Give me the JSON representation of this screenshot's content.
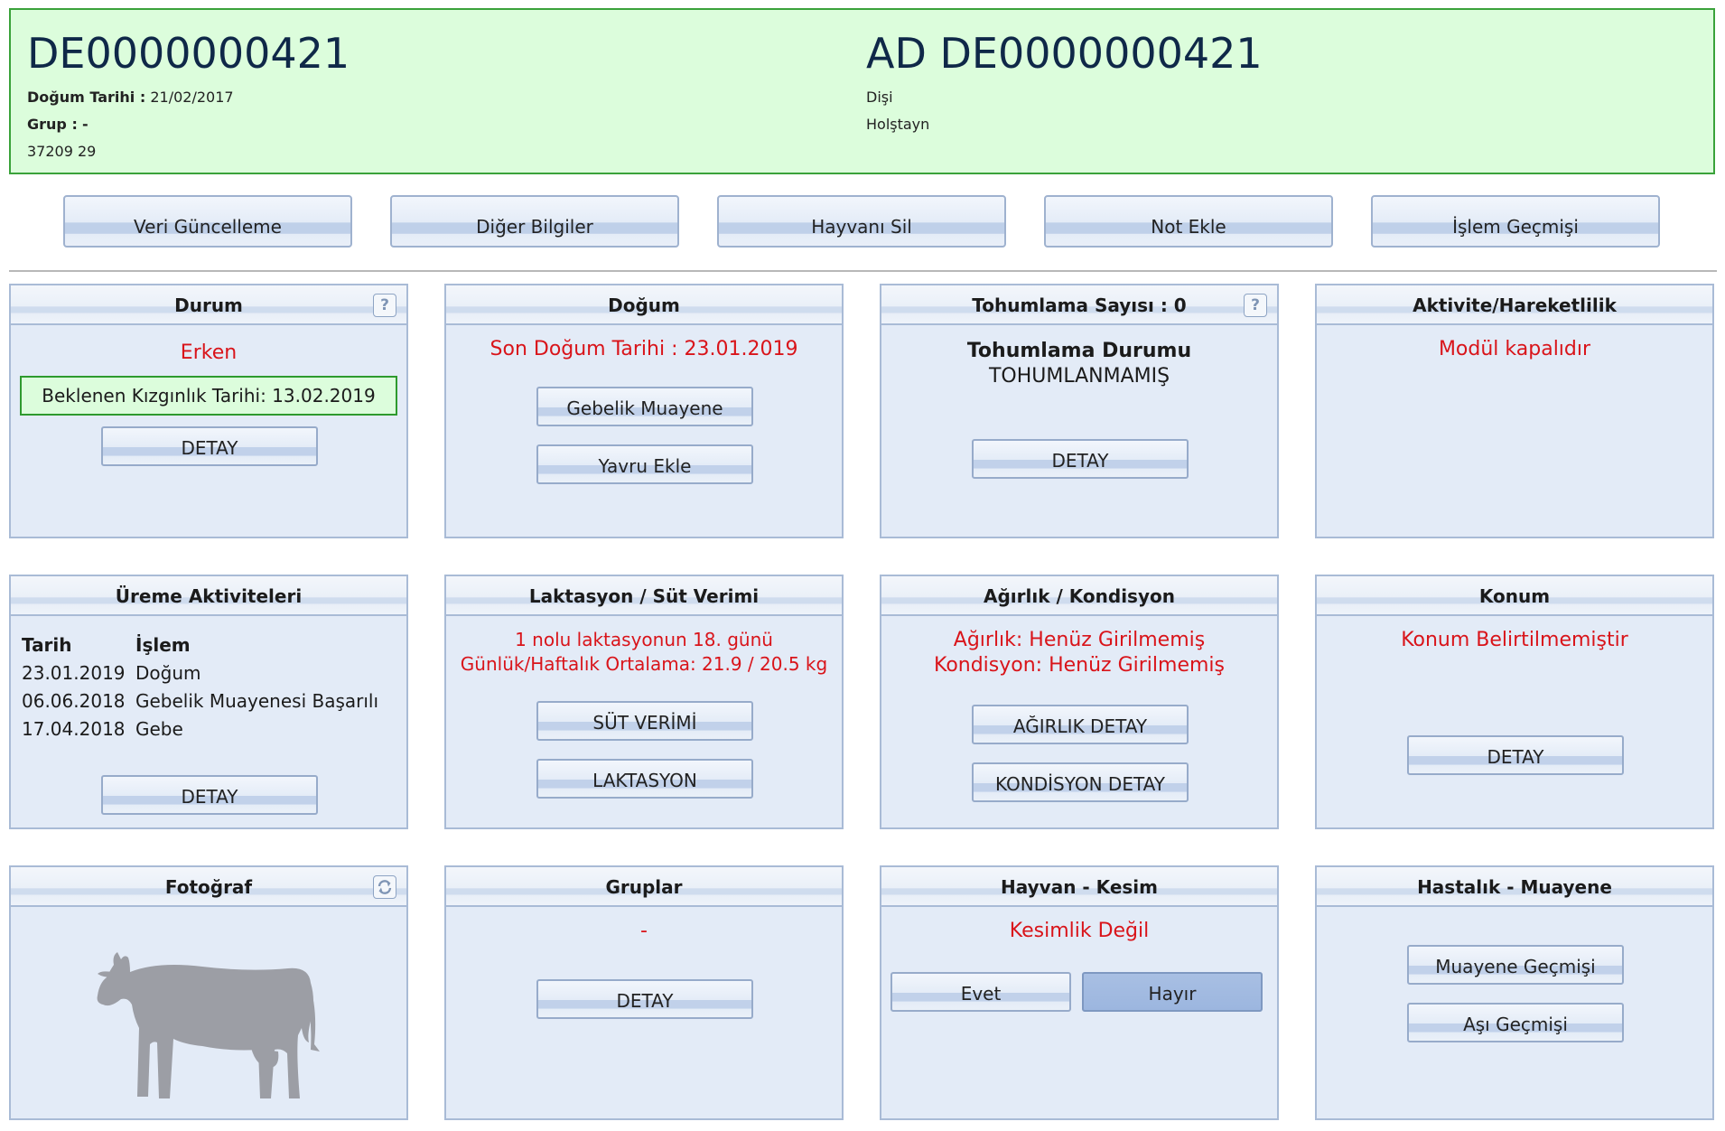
{
  "header": {
    "id": "DE0000000421",
    "birth_label": "Doğum Tarihi :",
    "birth_value": "21/02/2017",
    "group_label": "Grup :",
    "group_value": "-",
    "code": "37209 29",
    "name": "AD DE0000000421",
    "sex": "Dişi",
    "breed": "Holştayn"
  },
  "toolbar": [
    {
      "label": "Veri Güncelleme"
    },
    {
      "label": "Diğer Bilgiler"
    },
    {
      "label": "Hayvanı Sil"
    },
    {
      "label": "Not Ekle"
    },
    {
      "label": "İşlem Geçmişi"
    }
  ],
  "panels": {
    "durum": {
      "title": "Durum",
      "status": "Erken",
      "expected_heat": "Beklenen Kızgınlık Tarihi: 13.02.2019",
      "button": "DETAY"
    },
    "dogum": {
      "title": "Doğum",
      "last_birth": "Son Doğum Tarihi : 23.01.2019",
      "btn1": "Gebelik Muayene",
      "btn2": "Yavru Ekle"
    },
    "tohumlama": {
      "title": "Tohumlama Sayısı : 0",
      "status_label": "Tohumlama Durumu",
      "status_value": "TOHUMLANMAMIŞ",
      "button": "DETAY"
    },
    "aktivite": {
      "title": "Aktivite/Hareketlilik",
      "message": "Modül kapalıdır"
    },
    "ureme": {
      "title": "Üreme Aktiviteleri",
      "col_date": "Tarih",
      "col_action": "İşlem",
      "rows": [
        {
          "date": "23.01.2019",
          "action": "Doğum"
        },
        {
          "date": "06.06.2018",
          "action": "Gebelik Muayenesi Başarılı"
        },
        {
          "date": "17.04.2018",
          "action": "Gebe"
        }
      ],
      "button": "DETAY"
    },
    "laktasyon": {
      "title": "Laktasyon / Süt Verimi",
      "line1": "1 nolu laktasyonun 18. günü",
      "line2": "Günlük/Haftalık Ortalama: 21.9 / 20.5 kg",
      "btn1": "SÜT VERİMİ",
      "btn2": "LAKTASYON"
    },
    "agirlik": {
      "title": "Ağırlık / Kondisyon",
      "line1": "Ağırlık: Henüz Girilmemiş",
      "line2": "Kondisyon: Henüz Girilmemiş",
      "btn1": "AĞIRLIK DETAY",
      "btn2": "KONDİSYON DETAY"
    },
    "konum": {
      "title": "Konum",
      "message": "Konum Belirtilmemiştir",
      "button": "DETAY"
    },
    "fotograf": {
      "title": "Fotoğraf"
    },
    "gruplar": {
      "title": "Gruplar",
      "value": "-",
      "button": "DETAY"
    },
    "kesim": {
      "title": "Hayvan - Kesim",
      "message": "Kesimlik Değil",
      "yes": "Evet",
      "no": "Hayır",
      "selected": "Hayır"
    },
    "hastalik": {
      "title": "Hastalık - Muayene",
      "btn1": "Muayene Geçmişi",
      "btn2": "Aşı Geçmişi"
    }
  },
  "icons": {
    "help": "help-icon",
    "refresh": "refresh-icon",
    "photo": "cow-silhouette-icon"
  },
  "colors": {
    "header_bg": "#dcfddc",
    "header_border": "#3aa23a",
    "panel_bg": "#e3ebf7",
    "alert_text": "#d9141a",
    "id_text": "#0f2848"
  }
}
